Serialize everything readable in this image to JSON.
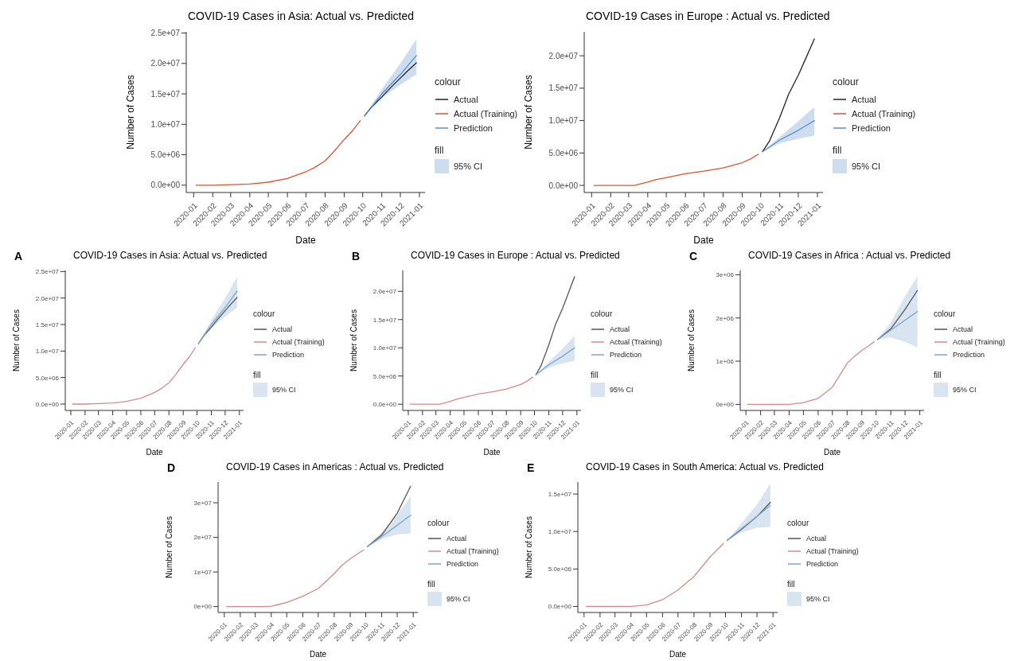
{
  "chart_data": [
    {
      "type": "line",
      "title": "COVID-19 Cases in Asia: Actual vs. Predicted",
      "annotations": [
        "95% CI"
      ],
      "xlabel": "Date",
      "ylabel": "Number of Cases",
      "legend_title": [
        "colour",
        "fill"
      ],
      "legend": "right",
      "grid": false,
      "marker": "none",
      "line_style": "solid",
      "xlim": [
        "2019-12-20",
        "2021-01-10"
      ],
      "xticks": [
        "2020-01",
        "2020-02",
        "2020-03",
        "2020-04",
        "2020-05",
        "2020-06",
        "2020-07",
        "2020-08",
        "2020-09",
        "2020-10",
        "2020-11",
        "2020-12",
        "2021-01"
      ],
      "ylim": [
        -1200000,
        25200000
      ],
      "yticks": [
        {
          "value": 0,
          "label": "0.0e+00"
        },
        {
          "value": 5000000,
          "label": "5.0e+06"
        },
        {
          "value": 10000000,
          "label": "1.0e+07"
        },
        {
          "value": 15000000,
          "label": "1.5e+07"
        },
        {
          "value": 20000000,
          "label": "2.0e+07"
        },
        {
          "value": 25000000,
          "label": "2.5e+07"
        }
      ],
      "series": [
        {
          "name": "Actual",
          "color": "#222222",
          "x": [
            "2020-10-04",
            "2020-10-15",
            "2020-11-01",
            "2020-11-15",
            "2020-12-01",
            "2020-12-15",
            "2020-12-27"
          ],
          "values": [
            11400000,
            12800000,
            14500000,
            16000000,
            17600000,
            19000000,
            20100000
          ]
        },
        {
          "name": "Actual (Training)",
          "color": "#d9552f",
          "x": [
            "2020-01-05",
            "2020-02-01",
            "2020-03-01",
            "2020-04-01",
            "2020-05-01",
            "2020-06-01",
            "2020-07-01",
            "2020-07-15",
            "2020-08-01",
            "2020-08-15",
            "2020-09-01",
            "2020-09-15",
            "2020-09-27"
          ],
          "values": [
            0,
            0,
            100000,
            200000,
            500000,
            1100000,
            2200000,
            2900000,
            4000000,
            5500000,
            7500000,
            9000000,
            10600000
          ]
        },
        {
          "name": "Prediction",
          "color": "#5b8fc9",
          "x": [
            "2020-10-04",
            "2020-11-01",
            "2020-12-01",
            "2020-12-27"
          ],
          "values": [
            11400000,
            15000000,
            18200000,
            21300000
          ],
          "lower": [
            11400000,
            14300000,
            16500000,
            18200000
          ],
          "upper": [
            11400000,
            15800000,
            20000000,
            24000000
          ]
        }
      ]
    },
    {
      "type": "line",
      "title": "COVID-19 Cases in Europe : Actual vs. Predicted",
      "annotations": [
        "95% CI"
      ],
      "xlabel": "Date",
      "ylabel": "Number of Cases",
      "legend_title": [
        "colour",
        "fill"
      ],
      "legend": "right",
      "grid": false,
      "marker": "none",
      "line_style": "solid",
      "xlim": [
        "2019-12-20",
        "2021-01-10"
      ],
      "xticks": [
        "2020-01",
        "2020-02",
        "2020-03",
        "2020-04",
        "2020-05",
        "2020-06",
        "2020-07",
        "2020-08",
        "2020-09",
        "2020-10",
        "2020-11",
        "2020-12",
        "2021-01"
      ],
      "ylim": [
        -1100000,
        23700000
      ],
      "yticks": [
        {
          "value": 0,
          "label": "0.0e+00"
        },
        {
          "value": 5000000,
          "label": "5.0e+06"
        },
        {
          "value": 10000000,
          "label": "1.0e+07"
        },
        {
          "value": 15000000,
          "label": "1.5e+07"
        },
        {
          "value": 20000000,
          "label": "2.0e+07"
        }
      ],
      "series": [
        {
          "name": "Actual",
          "color": "#222222",
          "x": [
            "2020-10-04",
            "2020-10-15",
            "2020-11-01",
            "2020-11-15",
            "2020-12-01",
            "2020-12-15",
            "2020-12-27"
          ],
          "values": [
            5200000,
            6800000,
            10500000,
            14000000,
            17000000,
            20000000,
            22600000
          ]
        },
        {
          "name": "Actual (Training)",
          "color": "#d9552f",
          "x": [
            "2020-01-05",
            "2020-02-01",
            "2020-03-01",
            "2020-03-10",
            "2020-04-01",
            "2020-04-15",
            "2020-05-01",
            "2020-06-01",
            "2020-07-01",
            "2020-08-01",
            "2020-09-01",
            "2020-09-15",
            "2020-09-27"
          ],
          "values": [
            0,
            0,
            0,
            0,
            500000,
            900000,
            1200000,
            1800000,
            2200000,
            2700000,
            3500000,
            4100000,
            4800000
          ]
        },
        {
          "name": "Prediction",
          "color": "#5b8fc9",
          "x": [
            "2020-10-04",
            "2020-11-01",
            "2020-12-01",
            "2020-12-27"
          ],
          "values": [
            5200000,
            7000000,
            8500000,
            10000000
          ],
          "lower": [
            5200000,
            6500000,
            7200000,
            7700000
          ],
          "upper": [
            5200000,
            7500000,
            9900000,
            12100000
          ]
        }
      ]
    },
    {
      "type": "line",
      "title": "COVID-19 Cases in Asia: Actual vs. Predicted",
      "annotations": [
        "A",
        "95% CI"
      ],
      "xlabel": "Date",
      "ylabel": "Number of Cases",
      "legend_title": [
        "colour",
        "fill"
      ],
      "legend": "right",
      "grid": false,
      "marker": "none",
      "line_style": "solid",
      "xlim": [
        "2019-12-20",
        "2021-01-10"
      ],
      "xticks": [
        "2020-01",
        "2020-02",
        "2020-03",
        "2020-04",
        "2020-05",
        "2020-06",
        "2020-07",
        "2020-08",
        "2020-09",
        "2020-10",
        "2020-11",
        "2020-12",
        "2021-01"
      ],
      "ylim": [
        -1200000,
        25200000
      ],
      "yticks": [
        {
          "value": 0,
          "label": "0.0e+00"
        },
        {
          "value": 5000000,
          "label": "5.0e+06"
        },
        {
          "value": 10000000,
          "label": "1.0e+07"
        },
        {
          "value": 15000000,
          "label": "1.5e+07"
        },
        {
          "value": 20000000,
          "label": "2.0e+07"
        },
        {
          "value": 25000000,
          "label": "2.5e+07"
        }
      ],
      "series": [
        {
          "name": "Actual",
          "color": "#555555",
          "x": [
            "2020-10-04",
            "2020-10-15",
            "2020-11-01",
            "2020-11-15",
            "2020-12-01",
            "2020-12-15",
            "2020-12-27"
          ],
          "values": [
            11400000,
            12800000,
            14500000,
            16000000,
            17600000,
            19000000,
            20100000
          ]
        },
        {
          "name": "Actual (Training)",
          "color": "#d48a8a",
          "x": [
            "2020-01-05",
            "2020-02-01",
            "2020-03-01",
            "2020-04-01",
            "2020-05-01",
            "2020-06-01",
            "2020-07-01",
            "2020-07-15",
            "2020-08-01",
            "2020-08-15",
            "2020-09-01",
            "2020-09-15",
            "2020-09-27"
          ],
          "values": [
            0,
            0,
            100000,
            200000,
            500000,
            1100000,
            2200000,
            2900000,
            4000000,
            5500000,
            7500000,
            9000000,
            10600000
          ]
        },
        {
          "name": "Prediction",
          "color": "#7ea6c9",
          "x": [
            "2020-10-04",
            "2020-11-01",
            "2020-12-01",
            "2020-12-27"
          ],
          "values": [
            11400000,
            15000000,
            18200000,
            21300000
          ],
          "lower": [
            11400000,
            14300000,
            16500000,
            18200000
          ],
          "upper": [
            11400000,
            15800000,
            20000000,
            24000000
          ]
        }
      ]
    },
    {
      "type": "line",
      "title": "COVID-19 Cases in Europe : Actual vs. Predicted",
      "annotations": [
        "B",
        "95% CI"
      ],
      "xlabel": "Date",
      "ylabel": "Number of Cases",
      "legend_title": [
        "colour",
        "fill"
      ],
      "legend": "right",
      "grid": false,
      "marker": "none",
      "line_style": "solid",
      "xlim": [
        "2019-12-20",
        "2021-01-10"
      ],
      "xticks": [
        "2020-01",
        "2020-02",
        "2020-03",
        "2020-04",
        "2020-05",
        "2020-06",
        "2020-07",
        "2020-08",
        "2020-09",
        "2020-10",
        "2020-11",
        "2020-12",
        "2021-01"
      ],
      "ylim": [
        -1100000,
        23700000
      ],
      "yticks": [
        {
          "value": 0,
          "label": "0.0e+00"
        },
        {
          "value": 5000000,
          "label": "5.0e+06"
        },
        {
          "value": 10000000,
          "label": "1.0e+07"
        },
        {
          "value": 15000000,
          "label": "1.5e+07"
        },
        {
          "value": 20000000,
          "label": "2.0e+07"
        }
      ],
      "series": [
        {
          "name": "Actual",
          "color": "#555555",
          "x": [
            "2020-10-04",
            "2020-10-15",
            "2020-11-01",
            "2020-11-15",
            "2020-12-01",
            "2020-12-15",
            "2020-12-27"
          ],
          "values": [
            5200000,
            6800000,
            10500000,
            14000000,
            17000000,
            20000000,
            22600000
          ]
        },
        {
          "name": "Actual (Training)",
          "color": "#d48a8a",
          "x": [
            "2020-01-05",
            "2020-02-01",
            "2020-03-01",
            "2020-03-10",
            "2020-04-01",
            "2020-04-15",
            "2020-05-01",
            "2020-06-01",
            "2020-07-01",
            "2020-08-01",
            "2020-09-01",
            "2020-09-15",
            "2020-09-27"
          ],
          "values": [
            0,
            0,
            0,
            0,
            500000,
            900000,
            1200000,
            1800000,
            2200000,
            2700000,
            3500000,
            4100000,
            4800000
          ]
        },
        {
          "name": "Prediction",
          "color": "#7ea6c9",
          "x": [
            "2020-10-04",
            "2020-11-01",
            "2020-12-01",
            "2020-12-27"
          ],
          "values": [
            5200000,
            7000000,
            8500000,
            10000000
          ],
          "lower": [
            5200000,
            6500000,
            7200000,
            7700000
          ],
          "upper": [
            5200000,
            7500000,
            9900000,
            12100000
          ]
        }
      ]
    },
    {
      "type": "line",
      "title": "COVID-19 Cases in Africa : Actual vs. Predicted",
      "annotations": [
        "C",
        "95% CI"
      ],
      "xlabel": "Date",
      "ylabel": "Number of Cases",
      "legend_title": [
        "colour",
        "fill"
      ],
      "legend": "right",
      "grid": false,
      "marker": "none",
      "line_style": "solid",
      "xlim": [
        "2019-12-20",
        "2021-01-10"
      ],
      "xticks": [
        "2020-01",
        "2020-02",
        "2020-03",
        "2020-04",
        "2020-05",
        "2020-06",
        "2020-07",
        "2020-08",
        "2020-09",
        "2020-10",
        "2020-11",
        "2020-12",
        "2021-01"
      ],
      "ylim": [
        -140000,
        3100000
      ],
      "yticks": [
        {
          "value": 0,
          "label": "0e+00"
        },
        {
          "value": 1000000,
          "label": "1e+06"
        },
        {
          "value": 2000000,
          "label": "2e+06"
        },
        {
          "value": 3000000,
          "label": "3e+06"
        }
      ],
      "series": [
        {
          "name": "Actual",
          "color": "#555555",
          "x": [
            "2020-10-04",
            "2020-11-01",
            "2020-12-01",
            "2020-12-27"
          ],
          "values": [
            1500000,
            1750000,
            2200000,
            2640000
          ]
        },
        {
          "name": "Actual (Training)",
          "color": "#d48a8a",
          "x": [
            "2020-01-05",
            "2020-03-01",
            "2020-04-01",
            "2020-05-01",
            "2020-06-01",
            "2020-07-01",
            "2020-07-15",
            "2020-08-01",
            "2020-08-15",
            "2020-09-01",
            "2020-09-15",
            "2020-09-27"
          ],
          "values": [
            0,
            0,
            0,
            40000,
            140000,
            400000,
            650000,
            950000,
            1100000,
            1250000,
            1350000,
            1450000
          ]
        },
        {
          "name": "Prediction",
          "color": "#7ea6c9",
          "x": [
            "2020-10-04",
            "2020-11-01",
            "2020-12-01",
            "2020-12-27"
          ],
          "values": [
            1500000,
            1720000,
            1950000,
            2150000
          ],
          "lower": [
            1500000,
            1550000,
            1450000,
            1320000
          ],
          "upper": [
            1500000,
            1900000,
            2500000,
            2970000
          ]
        }
      ]
    },
    {
      "type": "line",
      "title": "COVID-19 Cases in Americas : Actual vs. Predicted",
      "annotations": [
        "D",
        "95% CI"
      ],
      "xlabel": "Date",
      "ylabel": "Number of Cases",
      "legend_title": [
        "colour",
        "fill"
      ],
      "legend": "right",
      "grid": false,
      "marker": "none",
      "line_style": "solid",
      "xlim": [
        "2019-12-20",
        "2021-01-10"
      ],
      "xticks": [
        "2020-01",
        "2020-02",
        "2020-03",
        "2020-04",
        "2020-05",
        "2020-06",
        "2020-07",
        "2020-08",
        "2020-09",
        "2020-10",
        "2020-11",
        "2020-12",
        "2021-01"
      ],
      "ylim": [
        -1700000,
        36000000
      ],
      "yticks": [
        {
          "value": 0,
          "label": "0e+00"
        },
        {
          "value": 10000000,
          "label": "1e+07"
        },
        {
          "value": 20000000,
          "label": "2e+07"
        },
        {
          "value": 30000000,
          "label": "3e+07"
        }
      ],
      "series": [
        {
          "name": "Actual",
          "color": "#555555",
          "x": [
            "2020-10-04",
            "2020-11-01",
            "2020-12-01",
            "2020-12-27"
          ],
          "values": [
            17300000,
            20700000,
            27000000,
            34800000
          ]
        },
        {
          "name": "Actual (Training)",
          "color": "#d48a8a",
          "x": [
            "2020-01-05",
            "2020-03-15",
            "2020-04-01",
            "2020-04-15",
            "2020-05-01",
            "2020-06-01",
            "2020-07-01",
            "2020-08-01",
            "2020-08-15",
            "2020-09-01",
            "2020-09-27"
          ],
          "values": [
            0,
            0,
            100000,
            600000,
            1200000,
            3000000,
            5200000,
            9500000,
            11800000,
            13800000,
            16400000
          ]
        },
        {
          "name": "Prediction",
          "color": "#7ea6c9",
          "x": [
            "2020-10-04",
            "2020-11-01",
            "2020-12-01",
            "2020-12-27"
          ],
          "values": [
            17300000,
            20200000,
            23500000,
            26400000
          ],
          "lower": [
            17300000,
            19500000,
            20800000,
            21200000
          ],
          "upper": [
            17300000,
            21500000,
            26500000,
            31800000
          ]
        }
      ]
    },
    {
      "type": "line",
      "title": "COVID-19 Cases in South America: Actual vs. Predicted",
      "annotations": [
        "E",
        "95% CI"
      ],
      "xlabel": "Date",
      "ylabel": "Number of Cases",
      "legend_title": [
        "colour",
        "fill"
      ],
      "legend": "right",
      "grid": false,
      "marker": "none",
      "line_style": "solid",
      "xlim": [
        "2019-12-20",
        "2021-01-10"
      ],
      "xticks": [
        "2020-01",
        "2020-02",
        "2020-03",
        "2020-04",
        "2020-05",
        "2020-06",
        "2020-07",
        "2020-08",
        "2020-09",
        "2020-10",
        "2020-11",
        "2020-12",
        "2021-01"
      ],
      "ylim": [
        -800000,
        16600000
      ],
      "yticks": [
        {
          "value": 0,
          "label": "0.0e+00"
        },
        {
          "value": 5000000,
          "label": "5.0e+06"
        },
        {
          "value": 10000000,
          "label": "1.0e+07"
        },
        {
          "value": 15000000,
          "label": "1.5e+07"
        }
      ],
      "series": [
        {
          "name": "Actual",
          "color": "#555555",
          "x": [
            "2020-10-04",
            "2020-11-01",
            "2020-12-01",
            "2020-12-27"
          ],
          "values": [
            8800000,
            10300000,
            12000000,
            13900000
          ]
        },
        {
          "name": "Actual (Training)",
          "color": "#d48a8a",
          "x": [
            "2020-01-05",
            "2020-03-15",
            "2020-04-01",
            "2020-05-01",
            "2020-06-01",
            "2020-07-01",
            "2020-08-01",
            "2020-09-01",
            "2020-09-27"
          ],
          "values": [
            0,
            0,
            0,
            200000,
            900000,
            2200000,
            4000000,
            6600000,
            8400000
          ]
        },
        {
          "name": "Prediction",
          "color": "#7ea6c9",
          "x": [
            "2020-10-04",
            "2020-11-01",
            "2020-12-01",
            "2020-12-27"
          ],
          "values": [
            8800000,
            10400000,
            12000000,
            13500000
          ],
          "lower": [
            8800000,
            9900000,
            10500000,
            10600000
          ],
          "upper": [
            8800000,
            11100000,
            13600000,
            16400000
          ]
        }
      ]
    }
  ]
}
